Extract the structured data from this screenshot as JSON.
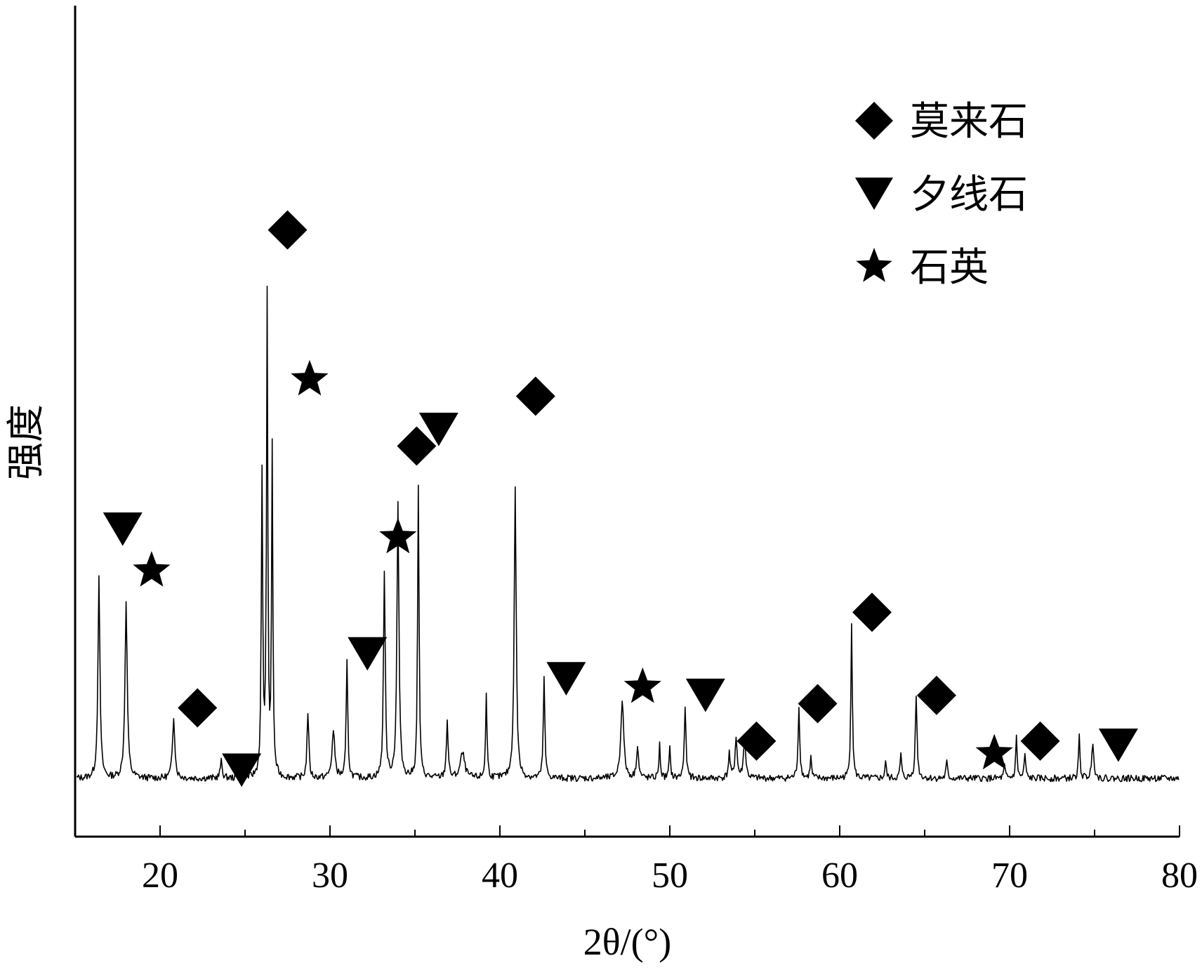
{
  "chart_data": {
    "type": "line",
    "title": "",
    "xlabel": "2θ/(°)",
    "ylabel": "强度",
    "xlim": [
      15,
      80
    ],
    "ylim": [
      0,
      100
    ],
    "grid": false,
    "legend_position": "top-right",
    "x_ticks": [
      20,
      30,
      40,
      50,
      60,
      70,
      80
    ],
    "x_tick_labels": [
      "20",
      "30",
      "40",
      "50",
      "60",
      "70",
      "80"
    ],
    "baseline": 7,
    "series": [
      {
        "style": "xrd-pattern",
        "color": "#000000",
        "peaks": [
          {
            "x": 16.4,
            "y": 24,
            "w": 0.07
          },
          {
            "x": 18.0,
            "y": 21,
            "w": 0.08
          },
          {
            "x": 20.8,
            "y": 7.5,
            "w": 0.08
          },
          {
            "x": 23.6,
            "y": 2,
            "w": 0.07
          },
          {
            "x": 26.0,
            "y": 36,
            "w": 0.05
          },
          {
            "x": 26.3,
            "y": 57,
            "w": 0.045
          },
          {
            "x": 26.6,
            "y": 39,
            "w": 0.045
          },
          {
            "x": 28.7,
            "y": 8,
            "w": 0.06
          },
          {
            "x": 30.2,
            "y": 5.5,
            "w": 0.1
          },
          {
            "x": 31.0,
            "y": 14,
            "w": 0.055
          },
          {
            "x": 33.2,
            "y": 25,
            "w": 0.06
          },
          {
            "x": 34.0,
            "y": 33,
            "w": 0.07
          },
          {
            "x": 35.2,
            "y": 35,
            "w": 0.05
          },
          {
            "x": 36.9,
            "y": 7,
            "w": 0.06
          },
          {
            "x": 37.8,
            "y": 3,
            "w": 0.15
          },
          {
            "x": 39.2,
            "y": 10,
            "w": 0.05
          },
          {
            "x": 40.9,
            "y": 35,
            "w": 0.07
          },
          {
            "x": 42.6,
            "y": 12,
            "w": 0.055
          },
          {
            "x": 47.2,
            "y": 9.5,
            "w": 0.1
          },
          {
            "x": 48.1,
            "y": 4,
            "w": 0.07
          },
          {
            "x": 49.4,
            "y": 4,
            "w": 0.05
          },
          {
            "x": 50.0,
            "y": 3.5,
            "w": 0.05
          },
          {
            "x": 50.9,
            "y": 8.5,
            "w": 0.06
          },
          {
            "x": 53.5,
            "y": 3,
            "w": 0.06
          },
          {
            "x": 53.9,
            "y": 5,
            "w": 0.07
          },
          {
            "x": 54.4,
            "y": 4.5,
            "w": 0.08
          },
          {
            "x": 57.6,
            "y": 8.5,
            "w": 0.06
          },
          {
            "x": 58.3,
            "y": 2.5,
            "w": 0.05
          },
          {
            "x": 60.7,
            "y": 19,
            "w": 0.05
          },
          {
            "x": 62.7,
            "y": 2,
            "w": 0.05
          },
          {
            "x": 63.6,
            "y": 3,
            "w": 0.05
          },
          {
            "x": 64.5,
            "y": 10,
            "w": 0.06
          },
          {
            "x": 66.3,
            "y": 2,
            "w": 0.05
          },
          {
            "x": 69.7,
            "y": 1.5,
            "w": 0.05
          },
          {
            "x": 70.4,
            "y": 5,
            "w": 0.05
          },
          {
            "x": 70.9,
            "y": 3,
            "w": 0.05
          },
          {
            "x": 74.1,
            "y": 5,
            "w": 0.05
          },
          {
            "x": 74.9,
            "y": 4.5,
            "w": 0.07
          }
        ]
      }
    ],
    "annotations": [
      {
        "marker": "diamond",
        "x": 27.5,
        "y": 73
      },
      {
        "marker": "star",
        "x": 28.8,
        "y": 55
      },
      {
        "marker": "triangle-down",
        "x": 17.8,
        "y": 37
      },
      {
        "marker": "star",
        "x": 19.5,
        "y": 32
      },
      {
        "marker": "diamond",
        "x": 22.2,
        "y": 15.5
      },
      {
        "marker": "triangle-down",
        "x": 24.8,
        "y": 8
      },
      {
        "marker": "triangle-down",
        "x": 32.2,
        "y": 22
      },
      {
        "marker": "star",
        "x": 34.0,
        "y": 36
      },
      {
        "marker": "diamond",
        "x": 35.1,
        "y": 47
      },
      {
        "marker": "triangle-down",
        "x": 36.4,
        "y": 49
      },
      {
        "marker": "diamond",
        "x": 42.1,
        "y": 53
      },
      {
        "marker": "triangle-down",
        "x": 43.9,
        "y": 19
      },
      {
        "marker": "star",
        "x": 48.4,
        "y": 18
      },
      {
        "marker": "triangle-down",
        "x": 52.1,
        "y": 17
      },
      {
        "marker": "diamond",
        "x": 55.1,
        "y": 11.5
      },
      {
        "marker": "diamond",
        "x": 58.7,
        "y": 16
      },
      {
        "marker": "diamond",
        "x": 61.9,
        "y": 27
      },
      {
        "marker": "diamond",
        "x": 65.7,
        "y": 17
      },
      {
        "marker": "star",
        "x": 69.1,
        "y": 10
      },
      {
        "marker": "diamond",
        "x": 71.8,
        "y": 11.5
      },
      {
        "marker": "triangle-down",
        "x": 76.4,
        "y": 11
      }
    ],
    "legend": [
      {
        "marker": "diamond",
        "label": "莫来石"
      },
      {
        "marker": "triangle-down",
        "label": "夕线石"
      },
      {
        "marker": "star",
        "label": "石英"
      }
    ]
  }
}
